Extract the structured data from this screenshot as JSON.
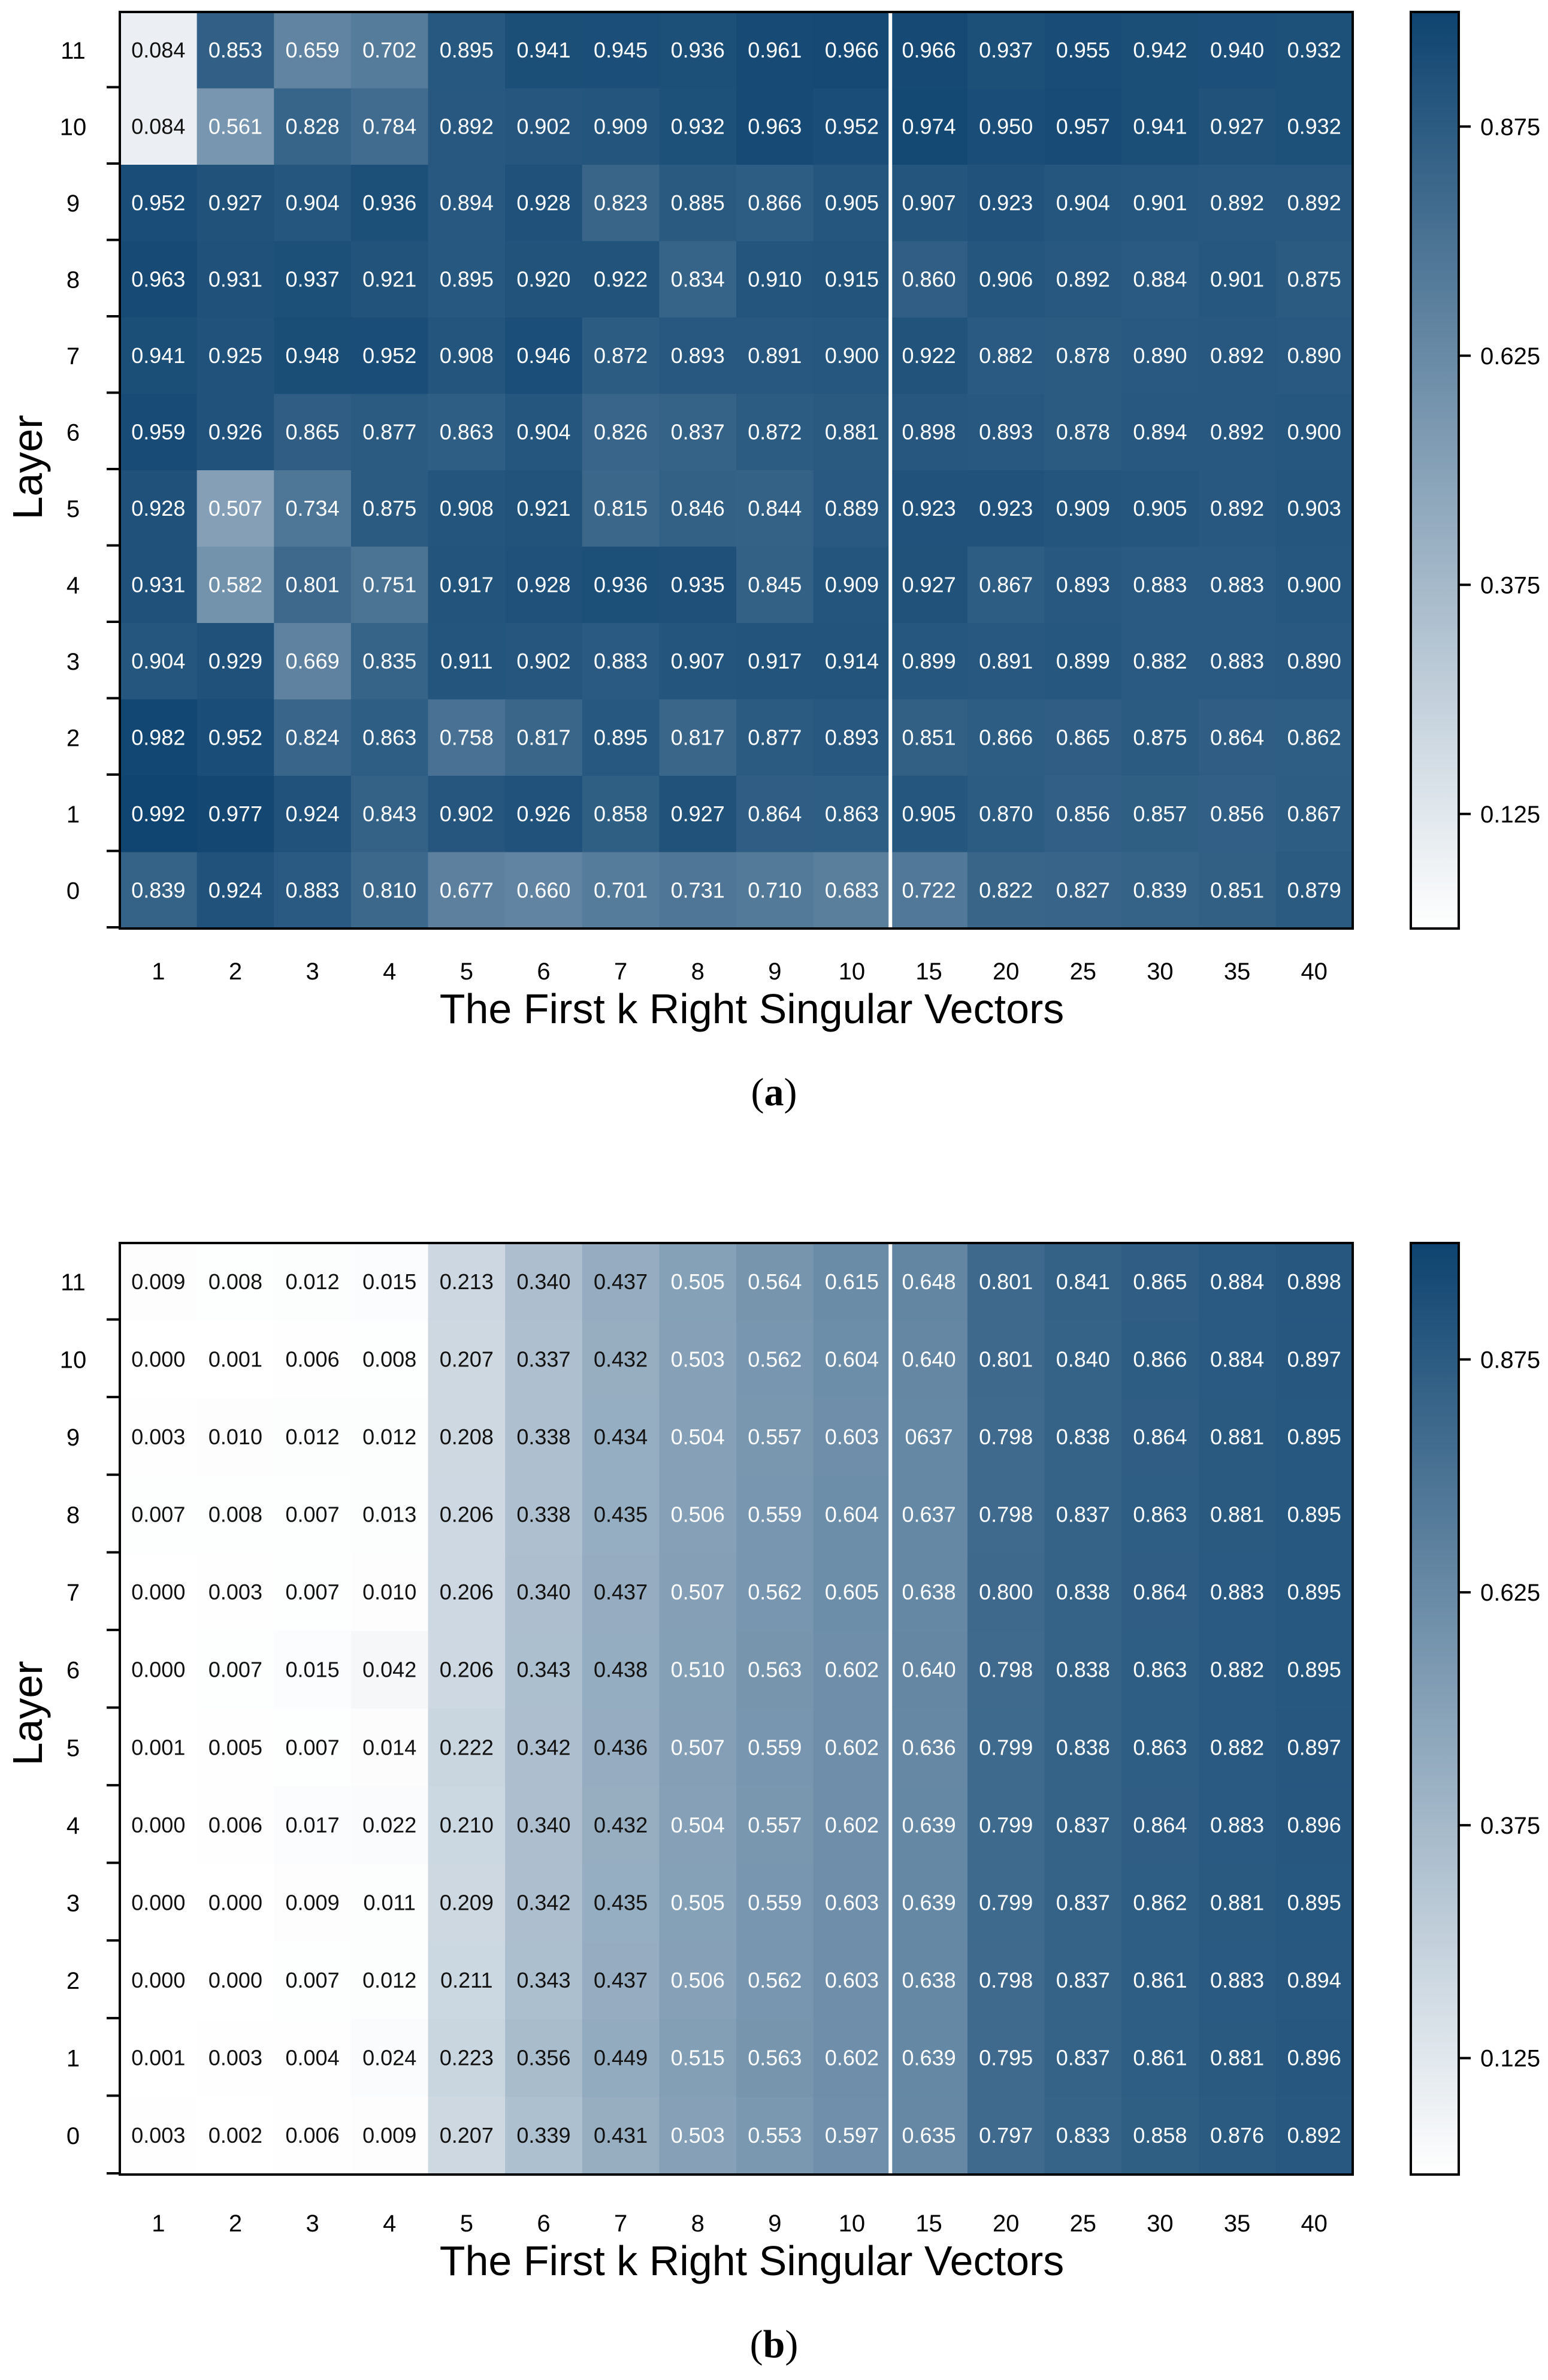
{
  "panel_a": {
    "caption_letter": "a",
    "xlabel": "The First k Right Singular Vectors",
    "ylabel": "Layer",
    "colorbar_ticks": [
      "0.875",
      "0.625",
      "0.375",
      "0.125"
    ]
  },
  "panel_b": {
    "caption_letter": "b",
    "xlabel": "The First k Right Singular Vectors",
    "ylabel": "Layer",
    "colorbar_ticks": [
      "0.875",
      "0.625",
      "0.375",
      "0.125"
    ]
  },
  "colors": {
    "low": "#ffffff",
    "high": "#0e4470",
    "separator": "#ffffff"
  },
  "chart_data": [
    {
      "type": "heatmap",
      "title": "",
      "xlabel": "The First k Right Singular Vectors",
      "ylabel": "Layer",
      "x": [
        "1",
        "2",
        "3",
        "4",
        "5",
        "6",
        "7",
        "8",
        "9",
        "10",
        "15",
        "20",
        "25",
        "30",
        "35",
        "40"
      ],
      "y": [
        "11",
        "10",
        "9",
        "8",
        "7",
        "6",
        "5",
        "4",
        "3",
        "2",
        "1",
        "0"
      ],
      "cells": [
        [
          "0.084",
          "0.853",
          "0.659",
          "0.702",
          "0.895",
          "0.941",
          "0.945",
          "0.936",
          "0.961",
          "0.966",
          "0.966",
          "0.937",
          "0.955",
          "0.942",
          "0.940",
          "0.932"
        ],
        [
          "0.084",
          "0.561",
          "0.828",
          "0.784",
          "0.892",
          "0.902",
          "0.909",
          "0.932",
          "0.963",
          "0.952",
          "0.974",
          "0.950",
          "0.957",
          "0.941",
          "0.927",
          "0.932"
        ],
        [
          "0.952",
          "0.927",
          "0.904",
          "0.936",
          "0.894",
          "0.928",
          "0.823",
          "0.885",
          "0.866",
          "0.905",
          "0.907",
          "0.923",
          "0.904",
          "0.901",
          "0.892",
          "0.892"
        ],
        [
          "0.963",
          "0.931",
          "0.937",
          "0.921",
          "0.895",
          "0.920",
          "0.922",
          "0.834",
          "0.910",
          "0.915",
          "0.860",
          "0.906",
          "0.892",
          "0.884",
          "0.901",
          "0.875"
        ],
        [
          "0.941",
          "0.925",
          "0.948",
          "0.952",
          "0.908",
          "0.946",
          "0.872",
          "0.893",
          "0.891",
          "0.900",
          "0.922",
          "0.882",
          "0.878",
          "0.890",
          "0.892",
          "0.890"
        ],
        [
          "0.959",
          "0.926",
          "0.865",
          "0.877",
          "0.863",
          "0.904",
          "0.826",
          "0.837",
          "0.872",
          "0.881",
          "0.898",
          "0.893",
          "0.878",
          "0.894",
          "0.892",
          "0.900"
        ],
        [
          "0.928",
          "0.507",
          "0.734",
          "0.875",
          "0.908",
          "0.921",
          "0.815",
          "0.846",
          "0.844",
          "0.889",
          "0.923",
          "0.923",
          "0.909",
          "0.905",
          "0.892",
          "0.903"
        ],
        [
          "0.931",
          "0.582",
          "0.801",
          "0.751",
          "0.917",
          "0.928",
          "0.936",
          "0.935",
          "0.845",
          "0.909",
          "0.927",
          "0.867",
          "0.893",
          "0.883",
          "0.883",
          "0.900"
        ],
        [
          "0.904",
          "0.929",
          "0.669",
          "0.835",
          "0.911",
          "0.902",
          "0.883",
          "0.907",
          "0.917",
          "0.914",
          "0.899",
          "0.891",
          "0.899",
          "0.882",
          "0.883",
          "0.890"
        ],
        [
          "0.982",
          "0.952",
          "0.824",
          "0.863",
          "0.758",
          "0.817",
          "0.895",
          "0.817",
          "0.877",
          "0.893",
          "0.851",
          "0.866",
          "0.865",
          "0.875",
          "0.864",
          "0.862"
        ],
        [
          "0.992",
          "0.977",
          "0.924",
          "0.843",
          "0.902",
          "0.926",
          "0.858",
          "0.927",
          "0.864",
          "0.863",
          "0.905",
          "0.870",
          "0.856",
          "0.857",
          "0.856",
          "0.867"
        ],
        [
          "0.839",
          "0.924",
          "0.883",
          "0.810",
          "0.677",
          "0.660",
          "0.701",
          "0.731",
          "0.710",
          "0.683",
          "0.722",
          "0.822",
          "0.827",
          "0.839",
          "0.851",
          "0.879"
        ]
      ],
      "colorbar": {
        "ticks": [
          0.875,
          0.625,
          0.375,
          0.125
        ],
        "range": [
          0.0,
          1.0
        ]
      },
      "legend": "right"
    },
    {
      "type": "heatmap",
      "title": "",
      "xlabel": "The First k Right Singular Vectors",
      "ylabel": "Layer",
      "x": [
        "1",
        "2",
        "3",
        "4",
        "5",
        "6",
        "7",
        "8",
        "9",
        "10",
        "15",
        "20",
        "25",
        "30",
        "35",
        "40"
      ],
      "y": [
        "11",
        "10",
        "9",
        "8",
        "7",
        "6",
        "5",
        "4",
        "3",
        "2",
        "1",
        "0"
      ],
      "cells": [
        [
          "0.009",
          "0.008",
          "0.012",
          "0.015",
          "0.213",
          "0.340",
          "0.437",
          "0.505",
          "0.564",
          "0.615",
          "0.648",
          "0.801",
          "0.841",
          "0.865",
          "0.884",
          "0.898"
        ],
        [
          "0.000",
          "0.001",
          "0.006",
          "0.008",
          "0.207",
          "0.337",
          "0.432",
          "0.503",
          "0.562",
          "0.604",
          "0.640",
          "0.801",
          "0.840",
          "0.866",
          "0.884",
          "0.897"
        ],
        [
          "0.003",
          "0.010",
          "0.012",
          "0.012",
          "0.208",
          "0.338",
          "0.434",
          "0.504",
          "0.557",
          "0.603",
          "0637",
          "0.798",
          "0.838",
          "0.864",
          "0.881",
          "0.895"
        ],
        [
          "0.007",
          "0.008",
          "0.007",
          "0.013",
          "0.206",
          "0.338",
          "0.435",
          "0.506",
          "0.559",
          "0.604",
          "0.637",
          "0.798",
          "0.837",
          "0.863",
          "0.881",
          "0.895"
        ],
        [
          "0.000",
          "0.003",
          "0.007",
          "0.010",
          "0.206",
          "0.340",
          "0.437",
          "0.507",
          "0.562",
          "0.605",
          "0.638",
          "0.800",
          "0.838",
          "0.864",
          "0.883",
          "0.895"
        ],
        [
          "0.000",
          "0.007",
          "0.015",
          "0.042",
          "0.206",
          "0.343",
          "0.438",
          "0.510",
          "0.563",
          "0.602",
          "0.640",
          "0.798",
          "0.838",
          "0.863",
          "0.882",
          "0.895"
        ],
        [
          "0.001",
          "0.005",
          "0.007",
          "0.014",
          "0.222",
          "0.342",
          "0.436",
          "0.507",
          "0.559",
          "0.602",
          "0.636",
          "0.799",
          "0.838",
          "0.863",
          "0.882",
          "0.897"
        ],
        [
          "0.000",
          "0.006",
          "0.017",
          "0.022",
          "0.210",
          "0.340",
          "0.432",
          "0.504",
          "0.557",
          "0.602",
          "0.639",
          "0.799",
          "0.837",
          "0.864",
          "0.883",
          "0.896"
        ],
        [
          "0.000",
          "0.000",
          "0.009",
          "0.011",
          "0.209",
          "0.342",
          "0.435",
          "0.505",
          "0.559",
          "0.603",
          "0.639",
          "0.799",
          "0.837",
          "0.862",
          "0.881",
          "0.895"
        ],
        [
          "0.000",
          "0.000",
          "0.007",
          "0.012",
          "0.211",
          "0.343",
          "0.437",
          "0.506",
          "0.562",
          "0.603",
          "0.638",
          "0.798",
          "0.837",
          "0.861",
          "0.883",
          "0.894"
        ],
        [
          "0.001",
          "0.003",
          "0.004",
          "0.024",
          "0.223",
          "0.356",
          "0.449",
          "0.515",
          "0.563",
          "0.602",
          "0.639",
          "0.795",
          "0.837",
          "0.861",
          "0.881",
          "0.896"
        ],
        [
          "0.003",
          "0.002",
          "0.006",
          "0.009",
          "0.207",
          "0.339",
          "0.431",
          "0.503",
          "0.553",
          "0.597",
          "0.635",
          "0.797",
          "0.833",
          "0.858",
          "0.876",
          "0.892"
        ]
      ],
      "colorbar": {
        "ticks": [
          0.875,
          0.625,
          0.375,
          0.125
        ],
        "range": [
          0.0,
          1.0
        ]
      },
      "legend": "right"
    }
  ]
}
